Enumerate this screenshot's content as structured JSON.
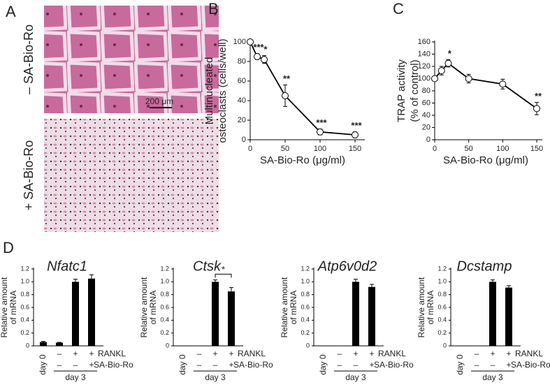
{
  "panel_a": {
    "panel_label": "A",
    "images": [
      {
        "label": "– SA-Bio-Ro",
        "scale_bar": "200 μm"
      },
      {
        "label": "+ SA-Bio-Ro"
      }
    ]
  },
  "chart_data": [
    {
      "type": "line",
      "panel_label": "B",
      "ylabel": [
        "Multinucleated",
        "osteoclasts (cells/well)"
      ],
      "xlabel": "SA-Bio-Ro (μg/ml)",
      "x": [
        0,
        10,
        20,
        50,
        100,
        150
      ],
      "values": [
        100,
        85,
        82,
        45,
        8,
        5
      ],
      "errors": [
        0,
        3,
        4,
        11,
        3,
        3
      ],
      "point_labels": [
        null,
        "***",
        "*",
        "**",
        "***",
        "***"
      ],
      "xlim": [
        0,
        150
      ],
      "xticks": [
        0,
        50,
        100,
        150
      ],
      "ylim": [
        0,
        100
      ],
      "yticks": [
        0,
        20,
        40,
        60,
        80,
        100
      ]
    },
    {
      "type": "line",
      "panel_label": "C",
      "ylabel": [
        "TRAP activity",
        "(% of control)"
      ],
      "xlabel": "SA-Bio-Ro (μg/ml)",
      "x": [
        0,
        10,
        20,
        50,
        100,
        150
      ],
      "values": [
        100,
        113,
        125,
        100,
        91,
        51
      ],
      "errors": [
        0,
        7,
        6,
        7,
        8,
        10
      ],
      "point_labels": [
        null,
        null,
        "*",
        null,
        null,
        "**"
      ],
      "xlim": [
        0,
        150
      ],
      "xticks": [
        0,
        50,
        100,
        150
      ],
      "ylim": [
        0,
        160
      ],
      "yticks": [
        0,
        20,
        40,
        60,
        80,
        100,
        120,
        140,
        160
      ]
    },
    {
      "type": "bar",
      "panel_label": "D",
      "title": "Nfatc1",
      "ylabel": [
        "Relative amount",
        "of mRNA"
      ],
      "categories": [
        "day 0",
        null,
        null,
        null
      ],
      "values": [
        0.06,
        0.05,
        1.0,
        1.05
      ],
      "errors": [
        0.01,
        0.005,
        0.04,
        0.06
      ],
      "row_labels": [
        "RANKL",
        "SA-Bio-Ro"
      ],
      "rankl": [
        "–",
        "+",
        "+"
      ],
      "sa": [
        "–",
        "–",
        "+"
      ],
      "group_label": "day 3",
      "ylim": [
        0,
        1.2
      ],
      "yticks": [
        0,
        0.2,
        0.4,
        0.6,
        0.8,
        {
          "value": 1,
          "label": "1.0"
        },
        1.2
      ],
      "color": "#000000"
    },
    {
      "type": "bar",
      "title": "Ctsk",
      "ylabel": [
        "Relative amount",
        "of mRNA"
      ],
      "significance": "*",
      "categories": [
        "day 0",
        null,
        null,
        null
      ],
      "values": [
        0,
        0,
        1.0,
        0.85
      ],
      "errors": [
        0,
        0,
        0.03,
        0.06
      ],
      "row_labels": [
        "RANKL",
        "SA-Bio-Ro"
      ],
      "rankl": [
        "–",
        "+",
        "+"
      ],
      "sa": [
        "–",
        "–",
        "+"
      ],
      "group_label": "day 3",
      "ylim": [
        0,
        1.2
      ],
      "yticks": [
        0,
        0.2,
        0.4,
        0.6,
        0.8,
        {
          "value": 1,
          "label": "1.0"
        },
        1.2
      ],
      "color": "#000000"
    },
    {
      "type": "bar",
      "title": "Atp6v0d2",
      "ylabel": [
        "Relative amount",
        "of mRNA"
      ],
      "categories": [
        "day 0",
        null,
        null,
        null
      ],
      "values": [
        0,
        0,
        1.0,
        0.92
      ],
      "errors": [
        0,
        0,
        0.04,
        0.04
      ],
      "row_labels": [
        "RANKL",
        "SA-Bio-Ro"
      ],
      "rankl": [
        "–",
        "+",
        "+"
      ],
      "sa": [
        "–",
        "–",
        "+"
      ],
      "group_label": "day 3",
      "ylim": [
        0,
        1.2
      ],
      "yticks": [
        0,
        0.2,
        0.4,
        0.6,
        0.8,
        {
          "value": 1,
          "label": "1.0"
        },
        1.2
      ],
      "color": "#000000"
    },
    {
      "type": "bar",
      "title": "Dcstamp",
      "ylabel": [
        "Relative amount",
        "of mRNA"
      ],
      "categories": [
        "day 0",
        null,
        null,
        null
      ],
      "values": [
        0,
        0,
        1.0,
        0.91
      ],
      "errors": [
        0,
        0,
        0.03,
        0.03
      ],
      "row_labels": [
        "RANKL",
        "SA-Bio-Ro"
      ],
      "rankl": [
        "–",
        "+",
        "+"
      ],
      "sa": [
        "–",
        "–",
        "+"
      ],
      "group_label": "day 3",
      "ylim": [
        0,
        1.2
      ],
      "yticks": [
        0,
        0.2,
        0.4,
        0.6,
        0.8,
        {
          "value": 1,
          "label": "1.0"
        },
        1.2
      ],
      "color": "#000000"
    }
  ]
}
